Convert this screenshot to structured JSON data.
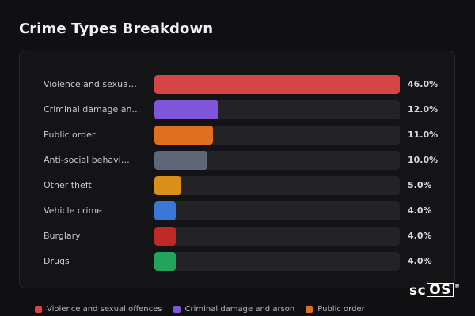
{
  "title": "Crime Types Breakdown",
  "chart_data": {
    "type": "bar",
    "orientation": "horizontal",
    "title": "Crime Types Breakdown",
    "xlim": [
      0,
      46
    ],
    "categories": [
      "Violence and sexual offences",
      "Criminal damage and arson",
      "Public order",
      "Anti-social behaviour",
      "Other theft",
      "Vehicle crime",
      "Burglary",
      "Drugs"
    ],
    "display_labels": [
      "Violence and sexua…",
      "Criminal damage an…",
      "Public order",
      "Anti-social behavi…",
      "Other theft",
      "Vehicle crime",
      "Burglary",
      "Drugs"
    ],
    "values": [
      46.0,
      12.0,
      11.0,
      10.0,
      5.0,
      4.0,
      4.0,
      4.0
    ],
    "value_labels": [
      "46.0%",
      "12.0%",
      "11.0%",
      "10.0%",
      "5.0%",
      "4.0%",
      "4.0%",
      "4.0%"
    ],
    "colors": [
      "#d64545",
      "#7f55d9",
      "#e07020",
      "#5e6778",
      "#d98f1a",
      "#3a76d6",
      "#c02828",
      "#22a55a"
    ],
    "legend": {
      "placement": "bottom",
      "entries": [
        {
          "label": "Violence and sexual offences",
          "color": "#d64545"
        },
        {
          "label": "Criminal damage and arson",
          "color": "#7f55d9"
        },
        {
          "label": "Public order",
          "color": "#e07020"
        }
      ]
    }
  },
  "watermark": {
    "text_a": "sc",
    "text_b": "OS",
    "mark": "®"
  }
}
